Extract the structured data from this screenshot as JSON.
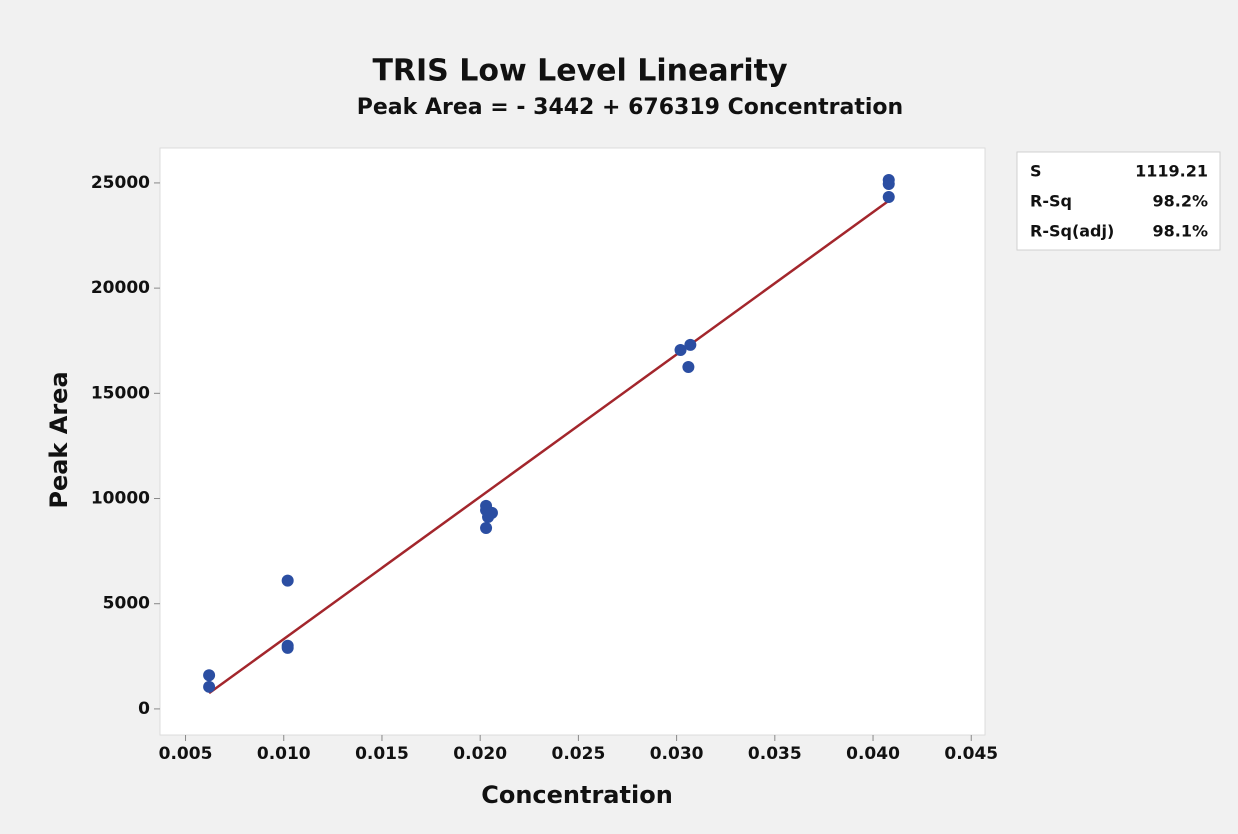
{
  "chart_data": {
    "type": "scatter",
    "title": "TRIS Low Level Linearity",
    "subtitle": "Peak Area = - 3442 + 676319 Concentration",
    "x_label": "Concentration",
    "y_label": "Peak Area",
    "x": [
      0.0062,
      0.0062,
      0.0102,
      0.0102,
      0.0102,
      0.0203,
      0.0203,
      0.0204,
      0.0203,
      0.0206,
      0.0302,
      0.0307,
      0.0306,
      0.0408,
      0.0408,
      0.0408
    ],
    "values": [
      1600,
      1050,
      6100,
      3000,
      2900,
      9650,
      9450,
      9120,
      8600,
      9320,
      17060,
      17300,
      16250,
      25140,
      24950,
      24330
    ],
    "color": "#2b4ea2",
    "fit": {
      "x": [
        0.0062,
        0.0408
      ],
      "values": [
        751,
        24152
      ],
      "color": "#a3262c"
    },
    "xlim": [
      0.0037,
      0.0457
    ],
    "ylim": [
      -1240,
      26660
    ],
    "xticks": [
      0.005,
      {
        "value": 0.01,
        "label": "0.010"
      },
      0.015,
      {
        "value": 0.02,
        "label": "0.020"
      },
      0.025,
      {
        "value": 0.03,
        "label": "0.030"
      },
      0.035,
      {
        "value": 0.04,
        "label": "0.040"
      },
      0.045
    ],
    "yticks": [
      0,
      5000,
      10000,
      15000,
      20000,
      25000
    ],
    "stats": [
      {
        "label": "S",
        "value": "1119.21"
      },
      {
        "label": "R-Sq",
        "value": "98.2%"
      },
      {
        "label": "R-Sq(adj)",
        "value": "98.1%"
      }
    ]
  }
}
